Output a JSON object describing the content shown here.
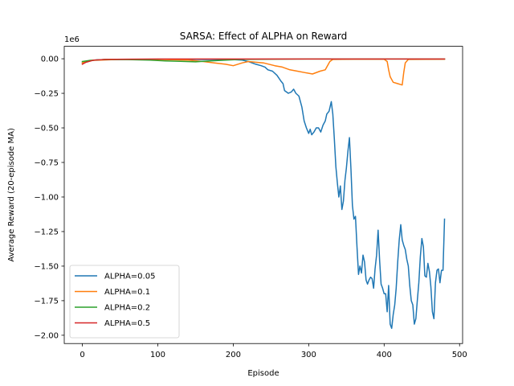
{
  "chart_data": {
    "type": "line",
    "title": "SARSA: Effect of ALPHA on Reward",
    "xlabel": "Episode",
    "ylabel": "Average Reward (20-episode MA)",
    "y_offset_text": "1e6",
    "xlim": [
      -24,
      504
    ],
    "ylim": [
      -2.06,
      0.09
    ],
    "x_ticks": [
      0,
      100,
      200,
      300,
      400,
      500
    ],
    "y_ticks": [
      0.0,
      -0.25,
      -0.5,
      -0.75,
      -1.0,
      -1.25,
      -1.5,
      -1.75,
      -2.0
    ],
    "y_tick_labels": [
      "0.00",
      "−0.25",
      "−0.50",
      "−0.75",
      "−1.00",
      "−1.25",
      "−1.50",
      "−1.75",
      "−2.00"
    ],
    "grid": false,
    "legend_position": "lower-left",
    "series": [
      {
        "name": "ALPHA=0.05",
        "color": "#1f77b4",
        "points": [
          [
            0,
            -0.03
          ],
          [
            8,
            -0.015
          ],
          [
            20,
            -0.008
          ],
          [
            60,
            -0.005
          ],
          [
            100,
            -0.005
          ],
          [
            150,
            -0.005
          ],
          [
            200,
            -0.006
          ],
          [
            212,
            -0.01
          ],
          [
            220,
            -0.02
          ],
          [
            230,
            -0.04
          ],
          [
            237,
            -0.05
          ],
          [
            242,
            -0.06
          ],
          [
            246,
            -0.08
          ],
          [
            252,
            -0.09
          ],
          [
            258,
            -0.12
          ],
          [
            263,
            -0.16
          ],
          [
            266,
            -0.18
          ],
          [
            268,
            -0.23
          ],
          [
            273,
            -0.25
          ],
          [
            277,
            -0.24
          ],
          [
            280,
            -0.22
          ],
          [
            283,
            -0.25
          ],
          [
            287,
            -0.27
          ],
          [
            291,
            -0.35
          ],
          [
            294,
            -0.45
          ],
          [
            297,
            -0.5
          ],
          [
            300,
            -0.54
          ],
          [
            302,
            -0.51
          ],
          [
            304,
            -0.55
          ],
          [
            307,
            -0.53
          ],
          [
            310,
            -0.5
          ],
          [
            313,
            -0.5
          ],
          [
            316,
            -0.53
          ],
          [
            319,
            -0.48
          ],
          [
            322,
            -0.45
          ],
          [
            324,
            -0.4
          ],
          [
            327,
            -0.38
          ],
          [
            330,
            -0.31
          ],
          [
            332,
            -0.4
          ],
          [
            334,
            -0.58
          ],
          [
            336,
            -0.78
          ],
          [
            338,
            -0.9
          ],
          [
            340,
            -1.0
          ],
          [
            342,
            -0.92
          ],
          [
            344,
            -1.09
          ],
          [
            346,
            -1.03
          ],
          [
            348,
            -0.88
          ],
          [
            350,
            -0.79
          ],
          [
            352,
            -0.67
          ],
          [
            354,
            -0.57
          ],
          [
            356,
            -0.8
          ],
          [
            358,
            -1.06
          ],
          [
            360,
            -1.16
          ],
          [
            362,
            -1.14
          ],
          [
            364,
            -1.36
          ],
          [
            366,
            -1.56
          ],
          [
            368,
            -1.5
          ],
          [
            370,
            -1.55
          ],
          [
            372,
            -1.42
          ],
          [
            374,
            -1.47
          ],
          [
            376,
            -1.6
          ],
          [
            378,
            -1.63
          ],
          [
            380,
            -1.6
          ],
          [
            382,
            -1.58
          ],
          [
            384,
            -1.59
          ],
          [
            386,
            -1.66
          ],
          [
            388,
            -1.52
          ],
          [
            390,
            -1.42
          ],
          [
            392,
            -1.24
          ],
          [
            394,
            -1.46
          ],
          [
            396,
            -1.63
          ],
          [
            398,
            -1.66
          ],
          [
            400,
            -1.7
          ],
          [
            402,
            -1.7
          ],
          [
            404,
            -1.83
          ],
          [
            406,
            -1.64
          ],
          [
            408,
            -1.92
          ],
          [
            410,
            -1.95
          ],
          [
            412,
            -1.85
          ],
          [
            414,
            -1.78
          ],
          [
            416,
            -1.66
          ],
          [
            418,
            -1.47
          ],
          [
            420,
            -1.31
          ],
          [
            422,
            -1.2
          ],
          [
            424,
            -1.31
          ],
          [
            426,
            -1.35
          ],
          [
            428,
            -1.38
          ],
          [
            430,
            -1.45
          ],
          [
            432,
            -1.5
          ],
          [
            434,
            -1.64
          ],
          [
            436,
            -1.75
          ],
          [
            438,
            -1.78
          ],
          [
            440,
            -1.92
          ],
          [
            442,
            -1.88
          ],
          [
            444,
            -1.75
          ],
          [
            446,
            -1.62
          ],
          [
            448,
            -1.43
          ],
          [
            450,
            -1.3
          ],
          [
            452,
            -1.36
          ],
          [
            454,
            -1.57
          ],
          [
            456,
            -1.58
          ],
          [
            458,
            -1.48
          ],
          [
            460,
            -1.54
          ],
          [
            462,
            -1.65
          ],
          [
            464,
            -1.83
          ],
          [
            466,
            -1.88
          ],
          [
            468,
            -1.62
          ],
          [
            470,
            -1.53
          ],
          [
            472,
            -1.52
          ],
          [
            474,
            -1.62
          ],
          [
            476,
            -1.53
          ],
          [
            478,
            -1.53
          ],
          [
            480,
            -1.16
          ]
        ]
      },
      {
        "name": "ALPHA=0.1",
        "color": "#ff7f0e",
        "points": [
          [
            0,
            -0.03
          ],
          [
            10,
            -0.012
          ],
          [
            50,
            -0.005
          ],
          [
            100,
            -0.005
          ],
          [
            140,
            -0.01
          ],
          [
            160,
            -0.02
          ],
          [
            175,
            -0.03
          ],
          [
            190,
            -0.04
          ],
          [
            200,
            -0.05
          ],
          [
            212,
            -0.03
          ],
          [
            220,
            -0.02
          ],
          [
            240,
            -0.03
          ],
          [
            255,
            -0.05
          ],
          [
            265,
            -0.06
          ],
          [
            275,
            -0.08
          ],
          [
            285,
            -0.09
          ],
          [
            295,
            -0.1
          ],
          [
            305,
            -0.11
          ],
          [
            315,
            -0.09
          ],
          [
            322,
            -0.08
          ],
          [
            328,
            -0.02
          ],
          [
            332,
            -0.005
          ],
          [
            360,
            -0.003
          ],
          [
            400,
            -0.003
          ],
          [
            404,
            -0.02
          ],
          [
            406,
            -0.08
          ],
          [
            408,
            -0.13
          ],
          [
            412,
            -0.17
          ],
          [
            418,
            -0.18
          ],
          [
            424,
            -0.19
          ],
          [
            426,
            -0.1
          ],
          [
            428,
            -0.03
          ],
          [
            432,
            -0.005
          ],
          [
            480,
            -0.003
          ]
        ]
      },
      {
        "name": "ALPHA=0.2",
        "color": "#2ca02c",
        "points": [
          [
            0,
            -0.02
          ],
          [
            10,
            -0.012
          ],
          [
            30,
            -0.005
          ],
          [
            60,
            -0.006
          ],
          [
            90,
            -0.01
          ],
          [
            110,
            -0.015
          ],
          [
            130,
            -0.018
          ],
          [
            150,
            -0.022
          ],
          [
            170,
            -0.015
          ],
          [
            190,
            -0.01
          ],
          [
            210,
            -0.005
          ],
          [
            250,
            -0.003
          ],
          [
            300,
            -0.002
          ],
          [
            400,
            -0.002
          ],
          [
            480,
            -0.002
          ]
        ]
      },
      {
        "name": "ALPHA=0.5",
        "color": "#d62728",
        "points": [
          [
            0,
            -0.04
          ],
          [
            5,
            -0.025
          ],
          [
            15,
            -0.01
          ],
          [
            30,
            -0.005
          ],
          [
            60,
            -0.003
          ],
          [
            100,
            -0.002
          ],
          [
            200,
            -0.002
          ],
          [
            300,
            -0.002
          ],
          [
            400,
            -0.002
          ],
          [
            480,
            -0.002
          ]
        ]
      }
    ]
  }
}
